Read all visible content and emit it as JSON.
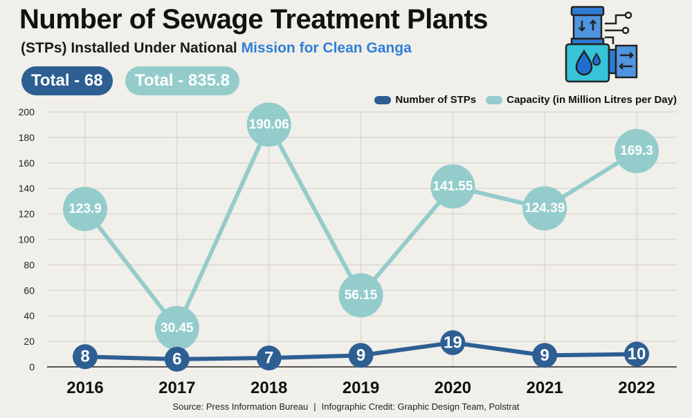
{
  "header": {
    "title": "Number of Sewage Treatment Plants",
    "subtitle_prefix": "(STPs) Installed Under National ",
    "subtitle_highlight": "Mission for Clean Ganga"
  },
  "totals": {
    "stps": "Total - 68",
    "capacity": "Total - 835.8"
  },
  "colors": {
    "stp": "#2e5f93",
    "capacity": "#94cccb",
    "highlight": "#2f7fd6",
    "grid": "#d6d3cc",
    "background": "#f1efea"
  },
  "icon": "water-treatment-machine-icon",
  "chart_data": {
    "type": "line",
    "categories": [
      "2016",
      "2017",
      "2018",
      "2019",
      "2020",
      "2021",
      "2022"
    ],
    "series": [
      {
        "name": "Number of STPs",
        "values": [
          8,
          6,
          7,
          9,
          19,
          9,
          10
        ],
        "labels": [
          "8",
          "6",
          "7",
          "9",
          "19",
          "9",
          "10"
        ]
      },
      {
        "name": "Capacity (in Million Litres per Day)",
        "values": [
          123.9,
          30.45,
          190.06,
          56.15,
          141.55,
          124.39,
          169.3
        ],
        "labels": [
          "123.9",
          "30.45",
          "190.06",
          "56.15",
          "141.55",
          "124.39",
          "169.3"
        ]
      }
    ],
    "yticks": [
      "0",
      "20",
      "40",
      "60",
      "80",
      "100",
      "120",
      "140",
      "160",
      "180",
      "200"
    ],
    "ylim": [
      0,
      200
    ],
    "grid": true,
    "legend_position": "top-right"
  },
  "footer": {
    "source": "Source: Press Information Bureau",
    "separator": "|",
    "credit": "Infographic Credit: Graphic Design Team, Polstrat"
  }
}
